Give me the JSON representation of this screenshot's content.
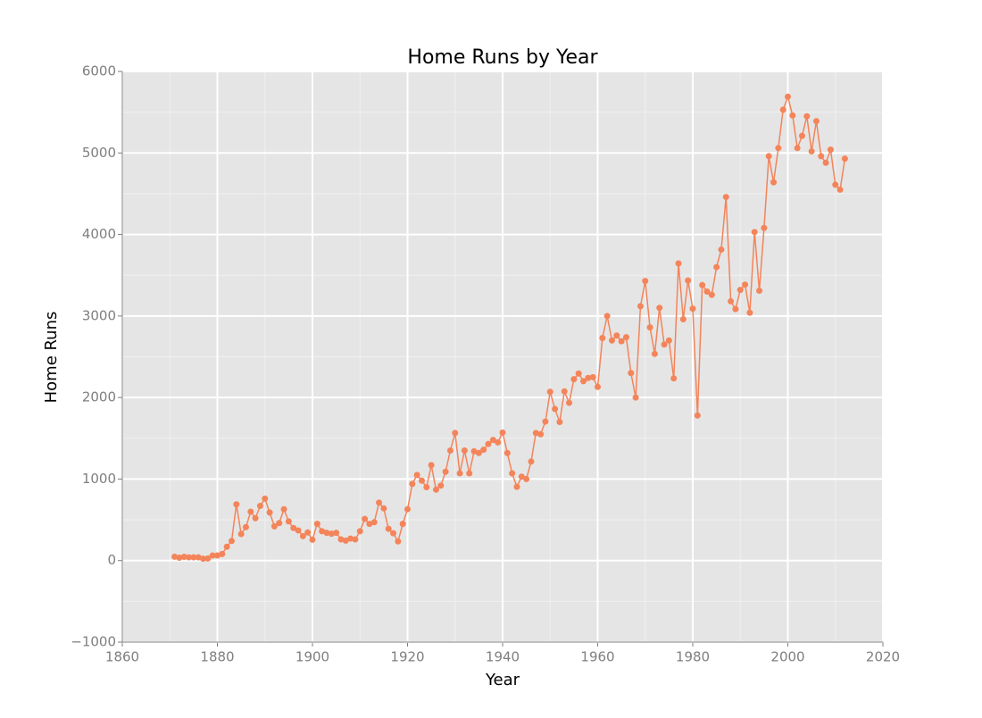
{
  "chart_data": {
    "type": "line",
    "title": "Home Runs by Year",
    "xlabel": "Year",
    "ylabel": "Home Runs",
    "x": [
      1871,
      1872,
      1873,
      1874,
      1875,
      1876,
      1877,
      1878,
      1879,
      1880,
      1881,
      1882,
      1883,
      1884,
      1885,
      1886,
      1887,
      1888,
      1889,
      1890,
      1891,
      1892,
      1893,
      1894,
      1895,
      1896,
      1897,
      1898,
      1899,
      1900,
      1901,
      1902,
      1903,
      1904,
      1905,
      1906,
      1907,
      1908,
      1909,
      1910,
      1911,
      1912,
      1913,
      1914,
      1915,
      1916,
      1917,
      1918,
      1919,
      1920,
      1921,
      1922,
      1923,
      1924,
      1925,
      1926,
      1927,
      1928,
      1929,
      1930,
      1931,
      1932,
      1933,
      1934,
      1935,
      1936,
      1937,
      1938,
      1939,
      1940,
      1941,
      1942,
      1943,
      1944,
      1945,
      1946,
      1947,
      1948,
      1949,
      1950,
      1951,
      1952,
      1953,
      1954,
      1955,
      1956,
      1957,
      1958,
      1959,
      1960,
      1961,
      1962,
      1963,
      1964,
      1965,
      1966,
      1967,
      1968,
      1969,
      1970,
      1971,
      1972,
      1973,
      1974,
      1975,
      1976,
      1977,
      1978,
      1979,
      1980,
      1981,
      1982,
      1983,
      1984,
      1985,
      1986,
      1987,
      1988,
      1989,
      1990,
      1991,
      1992,
      1993,
      1994,
      1995,
      1996,
      1997,
      1998,
      1999,
      2000,
      2001,
      2002,
      2003,
      2004,
      2005,
      2006,
      2007,
      2008,
      2009,
      2010,
      2011,
      2012
    ],
    "series": [
      {
        "name": "Home Runs",
        "color": "#f4845a",
        "values": [
          47,
          35,
          46,
          40,
          40,
          40,
          23,
          25,
          62,
          63,
          80,
          170,
          240,
          690,
          325,
          410,
          600,
          520,
          670,
          760,
          590,
          420,
          460,
          630,
          480,
          400,
          370,
          300,
          345,
          255,
          450,
          360,
          340,
          330,
          340,
          260,
          245,
          270,
          260,
          360,
          510,
          450,
          470,
          710,
          640,
          390,
          335,
          235,
          450,
          630,
          940,
          1050,
          980,
          900,
          1170,
          870,
          920,
          1090,
          1350,
          1565,
          1070,
          1350,
          1070,
          1340,
          1320,
          1360,
          1430,
          1480,
          1450,
          1570,
          1320,
          1070,
          905,
          1030,
          1000,
          1215,
          1565,
          1550,
          1705,
          2070,
          1860,
          1700,
          2075,
          1935,
          2225,
          2295,
          2200,
          2240,
          2250,
          2130,
          2730,
          3000,
          2700,
          2760,
          2690,
          2740,
          2300,
          2000,
          3120,
          3430,
          2860,
          2535,
          3100,
          2650,
          2700,
          2235,
          3645,
          2960,
          3435,
          3090,
          1780,
          3380,
          3300,
          3260,
          3600,
          3815,
          4460,
          3180,
          3085,
          3320,
          3385,
          3040,
          4030,
          3310,
          4080,
          4960,
          4640,
          5060,
          5530,
          5690,
          5460,
          5060,
          5210,
          5450,
          5020,
          5390,
          4960,
          4880,
          5040,
          4610,
          4550,
          4930
        ]
      }
    ],
    "xlim": [
      1860,
      2020
    ],
    "xticks": [
      1860,
      1880,
      1900,
      1920,
      1940,
      1960,
      1980,
      2000,
      2020
    ],
    "ylim": [
      -1000,
      6000
    ],
    "yticks": [
      {
        "value": -1000,
        "label": "−1000"
      },
      0,
      1000,
      2000,
      3000,
      4000,
      5000,
      6000
    ],
    "grid": true
  }
}
